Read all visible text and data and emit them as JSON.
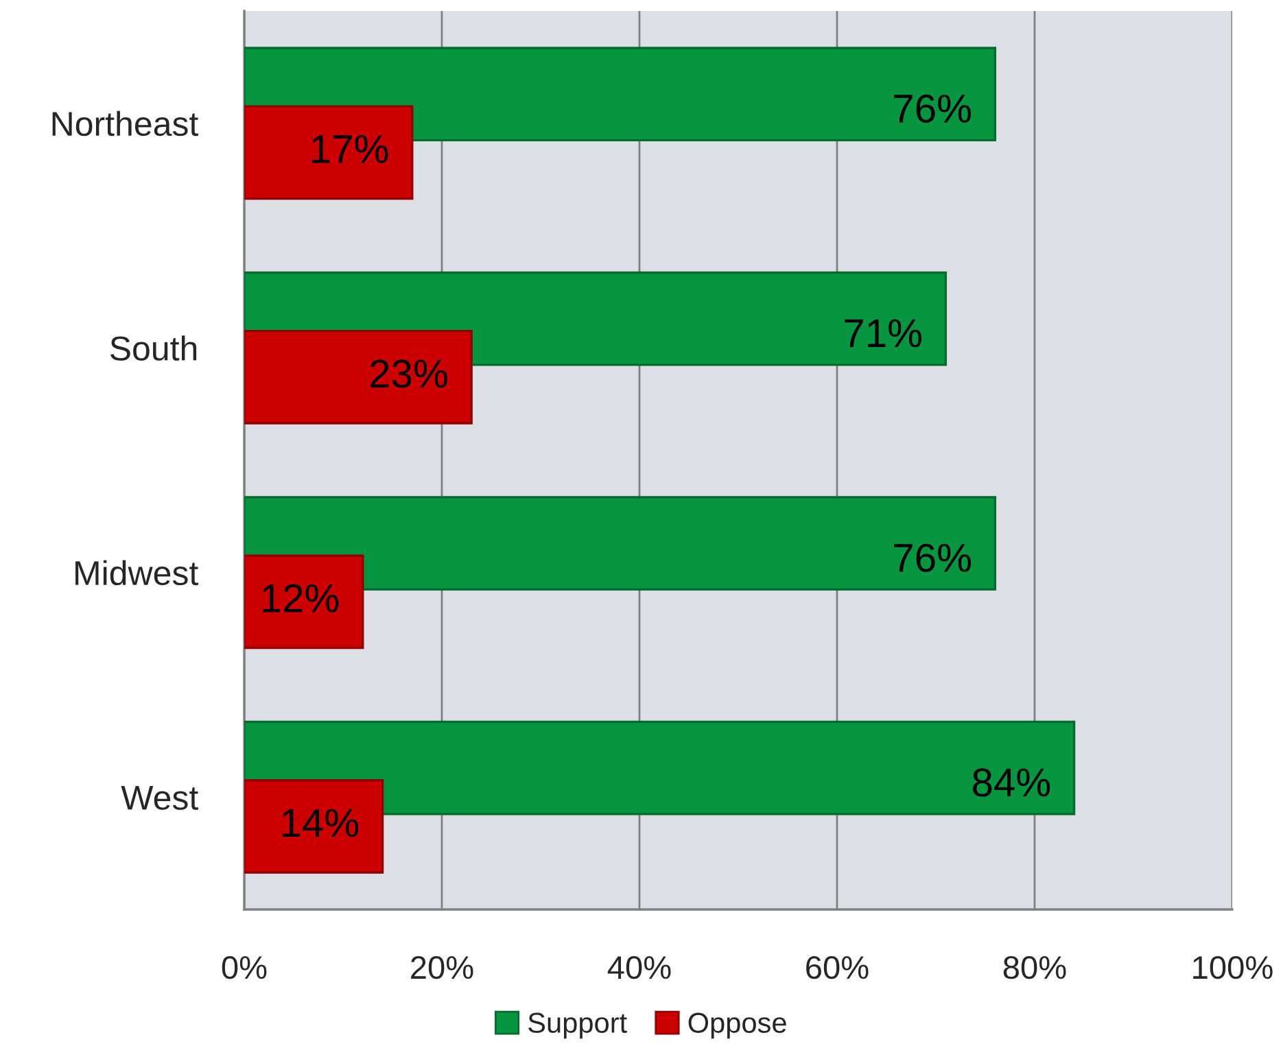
{
  "chart_data": {
    "type": "bar",
    "orientation": "horizontal",
    "categories": [
      "Northeast",
      "South",
      "Midwest",
      "West"
    ],
    "series": [
      {
        "name": "Support",
        "color": "#07963f",
        "values": [
          76,
          71,
          76,
          84
        ],
        "value_labels": [
          "76%",
          "71%",
          "76%",
          "84%"
        ]
      },
      {
        "name": "Oppose",
        "color": "#cc0000",
        "values": [
          17,
          23,
          12,
          14
        ],
        "value_labels": [
          "17%",
          "23%",
          "12%",
          "14%"
        ]
      }
    ],
    "xlim": [
      0,
      100
    ],
    "xticks": [
      {
        "value": 0,
        "label": "0%"
      },
      {
        "value": 20,
        "label": "20%"
      },
      {
        "value": 40,
        "label": "40%"
      },
      {
        "value": 60,
        "label": "60%"
      },
      {
        "value": 80,
        "label": "80%"
      },
      {
        "value": 100,
        "label": "100%"
      }
    ],
    "grid": "x",
    "legend": "bottom"
  }
}
